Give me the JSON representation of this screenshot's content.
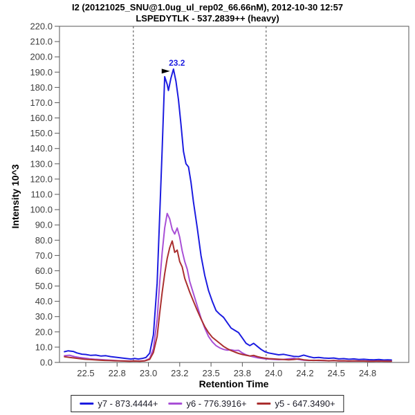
{
  "chart_data": {
    "type": "line",
    "title": "I2 (20121025_SNU@1.0ug_ul_rep02_66.66nM), 2012-10-30 12:57",
    "subtitle": "LSPEDYTLK - 537.2839++ (heavy)",
    "xlabel": "Retention Time",
    "ylabel": "Intensity 10^3",
    "xlim": [
      22.29,
      25.08
    ],
    "ylim": [
      0,
      220
    ],
    "grid": false,
    "legend_position": "bottom",
    "y_tick_step": 10,
    "x_ticks": [
      22.5,
      22.75,
      23.0,
      23.25,
      23.5,
      23.75,
      24.0,
      24.25,
      24.5,
      24.75
    ],
    "x_tick_labels": [
      "22.5",
      "22.8",
      "23.0",
      "23.2",
      "23.5",
      "23.8",
      "24.0",
      "24.2",
      "24.5",
      "24.8"
    ],
    "boundaries": [
      22.88,
      23.94
    ],
    "annotation": {
      "text": "23.2",
      "x": 23.2,
      "y": 192,
      "color": "#1b1be0"
    },
    "colors": {
      "frame": "#555555",
      "tick": "#555555",
      "tick_text": "#3d3d3d",
      "boundary": "#4a4a4a",
      "annotation_arrow": "#000000"
    },
    "series": [
      {
        "name": "y7 - 873.4444+",
        "color": "#1b1be0",
        "points": [
          [
            22.33,
            7.0
          ],
          [
            22.36,
            7.6
          ],
          [
            22.4,
            7.2
          ],
          [
            22.43,
            6.2
          ],
          [
            22.47,
            5.4
          ],
          [
            22.5,
            5.2
          ],
          [
            22.54,
            4.6
          ],
          [
            22.58,
            4.8
          ],
          [
            22.62,
            4.2
          ],
          [
            22.66,
            4.4
          ],
          [
            22.7,
            3.8
          ],
          [
            22.74,
            3.4
          ],
          [
            22.78,
            3.0
          ],
          [
            22.82,
            2.6
          ],
          [
            22.86,
            2.2
          ],
          [
            22.89,
            2.6
          ],
          [
            22.92,
            2.2
          ],
          [
            22.95,
            2.6
          ],
          [
            22.98,
            3.2
          ],
          [
            23.01,
            6.0
          ],
          [
            23.04,
            18.0
          ],
          [
            23.07,
            52.0
          ],
          [
            23.09,
            95.0
          ],
          [
            23.11,
            140.0
          ],
          [
            23.13,
            187.0
          ],
          [
            23.15,
            182.0
          ],
          [
            23.16,
            178.0
          ],
          [
            23.18,
            186.0
          ],
          [
            23.2,
            192.0
          ],
          [
            23.22,
            184.0
          ],
          [
            23.24,
            172.0
          ],
          [
            23.26,
            156.0
          ],
          [
            23.28,
            138.0
          ],
          [
            23.3,
            130.0
          ],
          [
            23.32,
            128.0
          ],
          [
            23.34,
            118.0
          ],
          [
            23.36,
            105.0
          ],
          [
            23.39,
            88.0
          ],
          [
            23.42,
            70.0
          ],
          [
            23.45,
            57.0
          ],
          [
            23.48,
            47.0
          ],
          [
            23.51,
            40.0
          ],
          [
            23.54,
            34.0
          ],
          [
            23.57,
            31.5
          ],
          [
            23.6,
            29.5
          ],
          [
            23.63,
            26.0
          ],
          [
            23.66,
            22.5
          ],
          [
            23.69,
            21.0
          ],
          [
            23.72,
            19.5
          ],
          [
            23.75,
            16.0
          ],
          [
            23.78,
            12.5
          ],
          [
            23.81,
            11.0
          ],
          [
            23.84,
            12.5
          ],
          [
            23.87,
            10.5
          ],
          [
            23.9,
            8.5
          ],
          [
            23.93,
            7.0
          ],
          [
            23.96,
            6.2
          ],
          [
            24.0,
            5.6
          ],
          [
            24.04,
            5.0
          ],
          [
            24.08,
            5.3
          ],
          [
            24.12,
            4.6
          ],
          [
            24.16,
            4.0
          ],
          [
            24.2,
            3.8
          ],
          [
            24.24,
            4.8
          ],
          [
            24.28,
            3.8
          ],
          [
            24.32,
            3.1
          ],
          [
            24.36,
            3.3
          ],
          [
            24.4,
            2.9
          ],
          [
            24.44,
            2.7
          ],
          [
            24.48,
            2.9
          ],
          [
            24.52,
            2.3
          ],
          [
            24.56,
            2.5
          ],
          [
            24.6,
            2.1
          ],
          [
            24.64,
            2.3
          ],
          [
            24.68,
            1.9
          ],
          [
            24.72,
            2.1
          ],
          [
            24.76,
            1.8
          ],
          [
            24.8,
            1.7
          ],
          [
            24.84,
            1.9
          ],
          [
            24.88,
            1.6
          ],
          [
            24.91,
            1.7
          ],
          [
            24.94,
            1.6
          ]
        ]
      },
      {
        "name": "y6 - 776.3916+",
        "color": "#a84fd6",
        "points": [
          [
            22.33,
            4.4
          ],
          [
            22.37,
            4.7
          ],
          [
            22.41,
            3.8
          ],
          [
            22.45,
            3.2
          ],
          [
            22.49,
            2.8
          ],
          [
            22.53,
            2.4
          ],
          [
            22.57,
            2.1
          ],
          [
            22.61,
            1.9
          ],
          [
            22.65,
            1.7
          ],
          [
            22.69,
            1.5
          ],
          [
            22.73,
            1.3
          ],
          [
            22.77,
            1.1
          ],
          [
            22.81,
            1.0
          ],
          [
            22.85,
            0.9
          ],
          [
            22.89,
            1.0
          ],
          [
            22.93,
            0.9
          ],
          [
            22.97,
            1.1
          ],
          [
            23.01,
            2.6
          ],
          [
            23.04,
            9.0
          ],
          [
            23.07,
            28.0
          ],
          [
            23.09,
            52.0
          ],
          [
            23.11,
            72.0
          ],
          [
            23.13,
            88.0
          ],
          [
            23.15,
            97.5
          ],
          [
            23.17,
            94.0
          ],
          [
            23.19,
            87.0
          ],
          [
            23.21,
            84.0
          ],
          [
            23.23,
            88.0
          ],
          [
            23.25,
            82.0
          ],
          [
            23.27,
            73.0
          ],
          [
            23.29,
            66.0
          ],
          [
            23.31,
            61.0
          ],
          [
            23.33,
            53.0
          ],
          [
            23.36,
            45.0
          ],
          [
            23.39,
            37.0
          ],
          [
            23.42,
            29.0
          ],
          [
            23.45,
            22.5
          ],
          [
            23.48,
            17.0
          ],
          [
            23.51,
            13.5
          ],
          [
            23.54,
            11.0
          ],
          [
            23.57,
            9.5
          ],
          [
            23.6,
            8.5
          ],
          [
            23.63,
            8.0
          ],
          [
            23.66,
            8.3
          ],
          [
            23.69,
            7.8
          ],
          [
            23.72,
            7.9
          ],
          [
            23.75,
            6.2
          ],
          [
            23.78,
            5.0
          ],
          [
            23.81,
            4.2
          ],
          [
            23.84,
            3.6
          ],
          [
            23.87,
            3.1
          ],
          [
            23.9,
            2.7
          ],
          [
            23.93,
            2.4
          ],
          [
            23.96,
            2.2
          ],
          [
            24.0,
            2.0
          ],
          [
            24.04,
            1.8
          ],
          [
            24.08,
            2.0
          ],
          [
            24.12,
            2.4
          ],
          [
            24.16,
            2.7
          ],
          [
            24.2,
            1.9
          ],
          [
            24.24,
            1.5
          ],
          [
            24.28,
            1.3
          ],
          [
            24.32,
            1.4
          ],
          [
            24.36,
            1.2
          ],
          [
            24.4,
            1.3
          ],
          [
            24.44,
            1.1
          ],
          [
            24.48,
            1.2
          ],
          [
            24.52,
            1.0
          ],
          [
            24.56,
            1.1
          ],
          [
            24.6,
            0.9
          ],
          [
            24.64,
            1.0
          ],
          [
            24.68,
            0.9
          ],
          [
            24.72,
            1.0
          ],
          [
            24.76,
            0.8
          ],
          [
            24.8,
            0.9
          ],
          [
            24.84,
            0.8
          ],
          [
            24.88,
            0.9
          ],
          [
            24.91,
            0.8
          ],
          [
            24.94,
            0.8
          ]
        ]
      },
      {
        "name": "y5 - 647.3490+",
        "color": "#aa2f2f",
        "points": [
          [
            22.33,
            3.7
          ],
          [
            22.37,
            3.3
          ],
          [
            22.41,
            2.9
          ],
          [
            22.45,
            2.5
          ],
          [
            22.49,
            2.1
          ],
          [
            22.53,
            1.9
          ],
          [
            22.57,
            1.7
          ],
          [
            22.61,
            1.5
          ],
          [
            22.65,
            1.3
          ],
          [
            22.69,
            1.2
          ],
          [
            22.73,
            1.1
          ],
          [
            22.77,
            1.0
          ],
          [
            22.81,
            0.9
          ],
          [
            22.85,
            0.8
          ],
          [
            22.89,
            0.9
          ],
          [
            22.93,
            0.8
          ],
          [
            22.97,
            1.0
          ],
          [
            23.01,
            2.0
          ],
          [
            23.04,
            6.5
          ],
          [
            23.07,
            17.0
          ],
          [
            23.09,
            32.0
          ],
          [
            23.11,
            46.0
          ],
          [
            23.13,
            58.0
          ],
          [
            23.15,
            68.0
          ],
          [
            23.17,
            75.0
          ],
          [
            23.19,
            79.5
          ],
          [
            23.21,
            72.0
          ],
          [
            23.23,
            73.5
          ],
          [
            23.25,
            66.0
          ],
          [
            23.27,
            62.5
          ],
          [
            23.29,
            55.0
          ],
          [
            23.31,
            50.5
          ],
          [
            23.33,
            46.0
          ],
          [
            23.36,
            40.0
          ],
          [
            23.39,
            34.0
          ],
          [
            23.42,
            28.5
          ],
          [
            23.45,
            23.5
          ],
          [
            23.48,
            19.5
          ],
          [
            23.51,
            16.5
          ],
          [
            23.54,
            14.5
          ],
          [
            23.57,
            12.5
          ],
          [
            23.6,
            10.5
          ],
          [
            23.63,
            9.0
          ],
          [
            23.66,
            7.8
          ],
          [
            23.69,
            6.8
          ],
          [
            23.72,
            5.9
          ],
          [
            23.75,
            5.2
          ],
          [
            23.78,
            4.7
          ],
          [
            23.81,
            4.2
          ],
          [
            23.84,
            4.6
          ],
          [
            23.87,
            3.8
          ],
          [
            23.9,
            3.2
          ],
          [
            23.93,
            2.8
          ],
          [
            23.96,
            2.5
          ],
          [
            24.0,
            2.3
          ],
          [
            24.04,
            2.1
          ],
          [
            24.08,
            1.9
          ],
          [
            24.12,
            1.7
          ],
          [
            24.16,
            1.9
          ],
          [
            24.2,
            2.3
          ],
          [
            24.24,
            1.7
          ],
          [
            24.28,
            1.4
          ],
          [
            24.32,
            1.3
          ],
          [
            24.36,
            1.4
          ],
          [
            24.4,
            1.2
          ],
          [
            24.44,
            1.1
          ],
          [
            24.48,
            1.2
          ],
          [
            24.52,
            1.0
          ],
          [
            24.56,
            1.1
          ],
          [
            24.6,
            0.9
          ],
          [
            24.64,
            1.0
          ],
          [
            24.68,
            0.9
          ],
          [
            24.72,
            0.9
          ],
          [
            24.76,
            0.8
          ],
          [
            24.8,
            0.8
          ],
          [
            24.84,
            0.9
          ],
          [
            24.88,
            0.8
          ],
          [
            24.91,
            0.8
          ],
          [
            24.94,
            0.8
          ]
        ]
      }
    ]
  }
}
